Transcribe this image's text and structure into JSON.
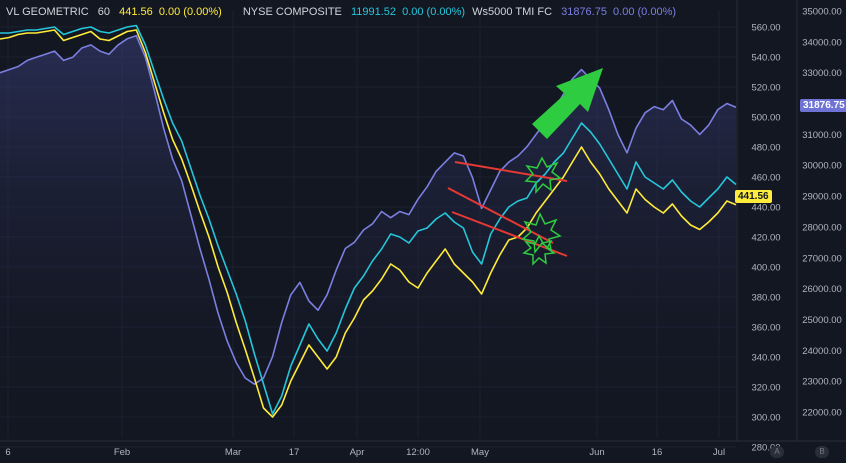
{
  "legend": [
    {
      "name": "VL GEOMETRIC",
      "interval": "60",
      "value": "441.56",
      "change": "0.00 (0.00%)",
      "color": "#ffeb3b"
    },
    {
      "name": "NYSE COMPOSITE",
      "interval": "",
      "value": "11991.52",
      "change": "0.00 (0.00%)",
      "color": "#26c6da"
    },
    {
      "name": "Ws5000 TMI FC",
      "interval": "",
      "value": "31876.75",
      "change": "0.00 (0.00%)",
      "color": "#7b7fe0"
    }
  ],
  "badges": {
    "right": "31876.75",
    "left": "441.56"
  },
  "scale_buttons": {
    "a": "A",
    "b": "B"
  },
  "chart_data": {
    "type": "line",
    "left_axis": {
      "ticks": [
        "560.00",
        "540.00",
        "520.00",
        "500.00",
        "480.00",
        "460.00",
        "440.00",
        "420.00",
        "400.00",
        "380.00",
        "360.00",
        "340.00",
        "320.00",
        "300.00",
        "280.00"
      ],
      "range": [
        280,
        560
      ]
    },
    "right_axis": {
      "ticks": [
        "35000.00",
        "34000.00",
        "33000.00",
        "32000.00",
        "31000.00",
        "30000.00",
        "29000.00",
        "28000.00",
        "27000.00",
        "26000.00",
        "25000.00",
        "24000.00",
        "23000.00",
        "22000.00"
      ],
      "range": [
        22000,
        35000
      ]
    },
    "x_ticks": [
      "6",
      "Feb",
      "Mar",
      "17",
      "Apr",
      "12:00",
      "May",
      "Jun",
      "16",
      "Jul"
    ],
    "series": [
      {
        "name": "Ws5000 TMI FC",
        "color": "#7b7fe0",
        "values": [
          33000,
          33100,
          33200,
          33400,
          33500,
          33600,
          33700,
          33400,
          33500,
          33800,
          33900,
          33700,
          33600,
          33900,
          34100,
          34200,
          33500,
          32400,
          31200,
          30200,
          29500,
          28400,
          27300,
          26300,
          25200,
          24300,
          23600,
          23100,
          22900,
          23100,
          23800,
          24900,
          25800,
          26200,
          25600,
          25300,
          25800,
          26600,
          27300,
          27500,
          27900,
          28100,
          28500,
          28300,
          28500,
          28400,
          28900,
          29300,
          29800,
          30100,
          30400,
          30300,
          29600,
          28600,
          29200,
          29800,
          30100,
          30300,
          30600,
          31000,
          31400,
          31800,
          32300,
          32800,
          33100,
          32800,
          32500,
          31800,
          31000,
          30400,
          31200,
          31700,
          31900,
          31800,
          32100,
          31500,
          31300,
          31000,
          31300,
          31800,
          32000,
          31876.75
        ]
      },
      {
        "name": "NYSE COMPOSITE",
        "color": "#26c6da",
        "values": [
          556,
          556,
          557,
          558,
          558,
          559,
          560,
          555,
          557,
          559,
          560,
          557,
          556,
          558,
          560,
          561,
          548,
          530,
          512,
          496,
          484,
          466,
          448,
          432,
          414,
          398,
          382,
          364,
          342,
          322,
          302,
          314,
          334,
          348,
          362,
          352,
          344,
          356,
          372,
          386,
          394,
          404,
          412,
          422,
          420,
          416,
          424,
          426,
          432,
          436,
          430,
          426,
          410,
          402,
          422,
          432,
          440,
          444,
          446,
          456,
          462,
          470,
          476,
          486,
          496,
          490,
          482,
          472,
          462,
          452,
          470,
          460,
          456,
          452,
          458,
          450,
          444,
          440,
          446,
          452,
          460,
          455
        ]
      },
      {
        "name": "VL GEOMETRIC",
        "color": "#ffeb3b",
        "values": [
          552,
          553,
          555,
          556,
          556,
          557,
          558,
          551,
          553,
          555,
          557,
          552,
          551,
          554,
          557,
          558,
          543,
          523,
          503,
          485,
          472,
          455,
          437,
          420,
          400,
          383,
          363,
          345,
          326,
          306,
          300,
          308,
          324,
          336,
          348,
          340,
          332,
          340,
          356,
          366,
          378,
          384,
          392,
          402,
          398,
          390,
          386,
          396,
          404,
          412,
          402,
          396,
          390,
          382,
          396,
          408,
          418,
          420,
          426,
          436,
          444,
          452,
          460,
          470,
          480,
          470,
          462,
          452,
          444,
          436,
          452,
          445,
          440,
          436,
          442,
          434,
          428,
          425,
          430,
          436,
          444,
          441.56
        ]
      }
    ]
  }
}
